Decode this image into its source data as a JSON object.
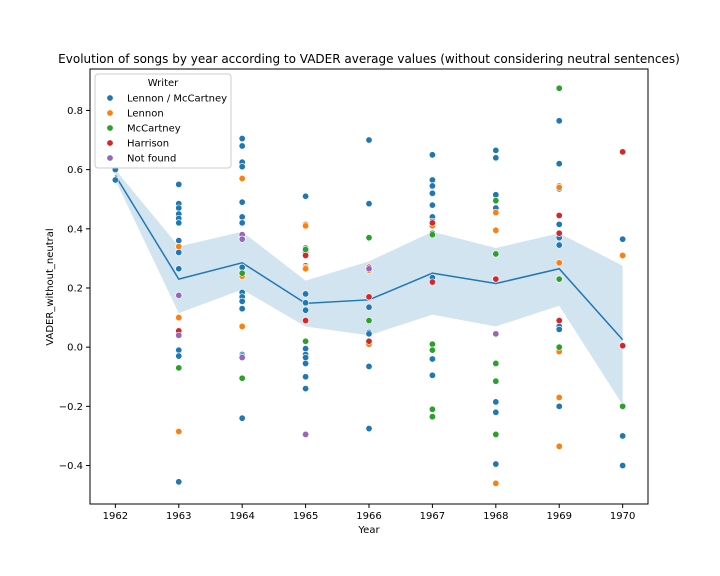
{
  "chart_data": {
    "type": "scatter",
    "title": "Evolution of songs by year according to VADER average values (without considering neutral sentences)",
    "xlabel": "Year",
    "ylabel": "VADER_without_neutral",
    "xlim": [
      1961.6,
      1970.4
    ],
    "ylim": [
      -0.53,
      0.94
    ],
    "x_ticks": [
      1962,
      1963,
      1964,
      1965,
      1966,
      1967,
      1968,
      1969,
      1970
    ],
    "y_ticks": [
      -0.4,
      -0.2,
      0.0,
      0.2,
      0.4,
      0.6,
      0.8
    ],
    "y_tick_labels": [
      "−0.4",
      "−0.2",
      "0.0",
      "0.2",
      "0.4",
      "0.6",
      "0.8"
    ],
    "grid": false,
    "legend": {
      "title": "Writer",
      "placement": "top-left"
    },
    "series": [
      {
        "name": "Lennon / McCartney",
        "color": "#1f77b4",
        "points": [
          [
            1962,
            0.6
          ],
          [
            1962,
            0.565
          ],
          [
            1963,
            0.55
          ],
          [
            1963,
            0.485
          ],
          [
            1963,
            0.47
          ],
          [
            1963,
            0.45
          ],
          [
            1963,
            0.435
          ],
          [
            1963,
            0.42
          ],
          [
            1963,
            0.36
          ],
          [
            1963,
            0.32
          ],
          [
            1963,
            0.265
          ],
          [
            1963,
            -0.01
          ],
          [
            1963,
            -0.03
          ],
          [
            1963,
            -0.455
          ],
          [
            1964,
            0.705
          ],
          [
            1964,
            0.68
          ],
          [
            1964,
            0.625
          ],
          [
            1964,
            0.61
          ],
          [
            1964,
            0.49
          ],
          [
            1964,
            0.44
          ],
          [
            1964,
            0.42
          ],
          [
            1964,
            0.37
          ],
          [
            1964,
            0.27
          ],
          [
            1964,
            0.185
          ],
          [
            1964,
            0.17
          ],
          [
            1964,
            0.155
          ],
          [
            1964,
            0.13
          ],
          [
            1964,
            -0.025
          ],
          [
            1964,
            -0.03
          ],
          [
            1964,
            -0.24
          ],
          [
            1965,
            0.51
          ],
          [
            1965,
            0.32
          ],
          [
            1965,
            0.275
          ],
          [
            1965,
            0.18
          ],
          [
            1965,
            0.15
          ],
          [
            1965,
            0.125
          ],
          [
            1965,
            -0.005
          ],
          [
            1965,
            -0.025
          ],
          [
            1965,
            -0.035
          ],
          [
            1965,
            -0.055
          ],
          [
            1965,
            -0.1
          ],
          [
            1965,
            -0.14
          ],
          [
            1966,
            0.7
          ],
          [
            1966,
            0.485
          ],
          [
            1966,
            0.135
          ],
          [
            1966,
            0.05
          ],
          [
            1966,
            0.045
          ],
          [
            1966,
            -0.065
          ],
          [
            1966,
            -0.275
          ],
          [
            1967,
            0.65
          ],
          [
            1967,
            0.565
          ],
          [
            1967,
            0.545
          ],
          [
            1967,
            0.52
          ],
          [
            1967,
            0.48
          ],
          [
            1967,
            0.44
          ],
          [
            1967,
            0.425
          ],
          [
            1967,
            0.385
          ],
          [
            1967,
            0.235
          ],
          [
            1967,
            -0.04
          ],
          [
            1967,
            -0.095
          ],
          [
            1968,
            0.665
          ],
          [
            1968,
            0.64
          ],
          [
            1968,
            0.515
          ],
          [
            1968,
            0.47
          ],
          [
            1968,
            -0.185
          ],
          [
            1968,
            -0.22
          ],
          [
            1968,
            -0.395
          ],
          [
            1969,
            0.765
          ],
          [
            1969,
            0.62
          ],
          [
            1969,
            0.535
          ],
          [
            1969,
            0.415
          ],
          [
            1969,
            0.37
          ],
          [
            1969,
            0.345
          ],
          [
            1969,
            0.07
          ],
          [
            1969,
            0.06
          ],
          [
            1969,
            -0.2
          ],
          [
            1970,
            0.365
          ],
          [
            1970,
            -0.3
          ],
          [
            1970,
            -0.4
          ]
        ]
      },
      {
        "name": "Lennon",
        "color": "#ff7f0e",
        "points": [
          [
            1963,
            0.34
          ],
          [
            1963,
            0.1
          ],
          [
            1963,
            -0.285
          ],
          [
            1964,
            0.57
          ],
          [
            1964,
            0.24
          ],
          [
            1964,
            0.07
          ],
          [
            1965,
            0.415
          ],
          [
            1965,
            0.41
          ],
          [
            1965,
            0.27
          ],
          [
            1965,
            0.265
          ],
          [
            1966,
            0.26
          ],
          [
            1966,
            0.01
          ],
          [
            1967,
            0.41
          ],
          [
            1968,
            0.455
          ],
          [
            1968,
            0.395
          ],
          [
            1968,
            -0.46
          ],
          [
            1969,
            0.545
          ],
          [
            1969,
            0.54
          ],
          [
            1969,
            0.285
          ],
          [
            1969,
            -0.015
          ],
          [
            1969,
            -0.17
          ],
          [
            1969,
            -0.335
          ],
          [
            1970,
            0.31
          ]
        ]
      },
      {
        "name": "McCartney",
        "color": "#2ca02c",
        "points": [
          [
            1963,
            -0.07
          ],
          [
            1964,
            0.25
          ],
          [
            1964,
            -0.105
          ],
          [
            1965,
            0.335
          ],
          [
            1965,
            0.33
          ],
          [
            1965,
            0.02
          ],
          [
            1966,
            0.37
          ],
          [
            1966,
            0.09
          ],
          [
            1967,
            0.38
          ],
          [
            1967,
            0.01
          ],
          [
            1967,
            -0.01
          ],
          [
            1967,
            -0.21
          ],
          [
            1967,
            -0.235
          ],
          [
            1968,
            0.495
          ],
          [
            1968,
            0.315
          ],
          [
            1968,
            -0.055
          ],
          [
            1968,
            -0.115
          ],
          [
            1968,
            -0.295
          ],
          [
            1969,
            0.875
          ],
          [
            1969,
            0.23
          ],
          [
            1969,
            0.0
          ],
          [
            1970,
            -0.2
          ]
        ]
      },
      {
        "name": "Harrison",
        "color": "#d62728",
        "points": [
          [
            1963,
            0.055
          ],
          [
            1965,
            0.31
          ],
          [
            1965,
            0.09
          ],
          [
            1966,
            0.27
          ],
          [
            1966,
            0.17
          ],
          [
            1966,
            0.02
          ],
          [
            1967,
            0.42
          ],
          [
            1967,
            0.22
          ],
          [
            1968,
            0.23
          ],
          [
            1969,
            0.445
          ],
          [
            1969,
            0.385
          ],
          [
            1969,
            0.09
          ],
          [
            1970,
            0.66
          ],
          [
            1970,
            0.005
          ]
        ]
      },
      {
        "name": "Not found",
        "color": "#9467bd",
        "points": [
          [
            1963,
            0.175
          ],
          [
            1963,
            0.04
          ],
          [
            1964,
            0.38
          ],
          [
            1964,
            0.365
          ],
          [
            1964,
            -0.035
          ],
          [
            1965,
            -0.295
          ],
          [
            1966,
            0.265
          ],
          [
            1968,
            0.045
          ]
        ]
      }
    ],
    "mean_line": {
      "color": "#1f77b4",
      "x": [
        1962,
        1963,
        1964,
        1965,
        1966,
        1967,
        1968,
        1969,
        1970
      ],
      "y": [
        0.58,
        0.23,
        0.285,
        0.148,
        0.16,
        0.25,
        0.215,
        0.265,
        0.025
      ],
      "ci_low": [
        0.565,
        0.115,
        0.195,
        0.07,
        0.04,
        0.11,
        0.07,
        0.14,
        -0.195
      ],
      "ci_high": [
        0.6,
        0.34,
        0.39,
        0.225,
        0.29,
        0.39,
        0.335,
        0.385,
        0.275
      ],
      "ci_color": "#1f77b4"
    }
  }
}
